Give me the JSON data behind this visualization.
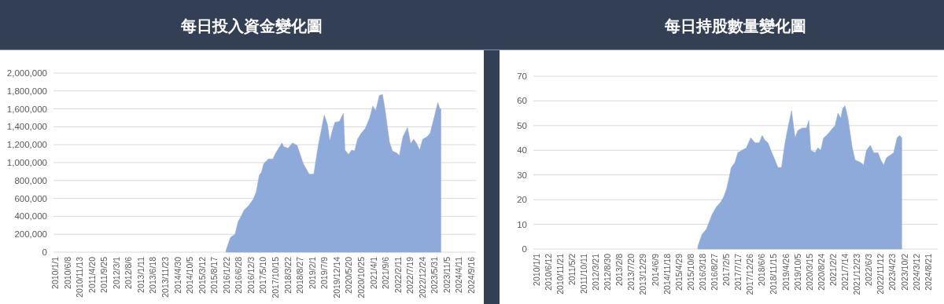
{
  "chart_data": [
    {
      "type": "area",
      "title": "每日投入資金變化圖",
      "grid": "y",
      "xlim": [
        "2009-12-12",
        "2024-11-16"
      ],
      "ylim": [
        0,
        2000000
      ],
      "yticks": [
        {
          "value": 0,
          "label": "0"
        },
        {
          "value": 200000,
          "label": "200,000"
        },
        {
          "value": 400000,
          "label": "400,000"
        },
        {
          "value": 600000,
          "label": "600,000"
        },
        {
          "value": 800000,
          "label": "800,000"
        },
        {
          "value": 1000000,
          "label": "1,000,000"
        },
        {
          "value": 1200000,
          "label": "1,200,000"
        },
        {
          "value": 1400000,
          "label": "1,400,000"
        },
        {
          "value": 1600000,
          "label": "1,600,000"
        },
        {
          "value": 1800000,
          "label": "1,800,000"
        },
        {
          "value": 2000000,
          "label": "2,000,000"
        }
      ],
      "xticks": [
        {
          "value": "2010-01-01",
          "label": "2010/1/1"
        },
        {
          "value": "2010-06-08",
          "label": "2010/6/8"
        },
        {
          "value": "2010-11-13",
          "label": "2010/11/13"
        },
        {
          "value": "2011-04-20",
          "label": "2011/4/20"
        },
        {
          "value": "2011-09-25",
          "label": "2011/9/25"
        },
        {
          "value": "2012-03-01",
          "label": "2012/3/1"
        },
        {
          "value": "2012-08-06",
          "label": "2012/8/6"
        },
        {
          "value": "2013-01-11",
          "label": "2013/1/11"
        },
        {
          "value": "2013-06-18",
          "label": "2013/6/18"
        },
        {
          "value": "2013-11-23",
          "label": "2013/11/23"
        },
        {
          "value": "2014-04-30",
          "label": "2014/4/30"
        },
        {
          "value": "2014-10-05",
          "label": "2014/10/5"
        },
        {
          "value": "2015-03-12",
          "label": "2015/3/12"
        },
        {
          "value": "2015-08-17",
          "label": "2015/8/17"
        },
        {
          "value": "2016-01-22",
          "label": "2016/1/22"
        },
        {
          "value": "2016-06-28",
          "label": "2016/6/28"
        },
        {
          "value": "2016-12-03",
          "label": "2016/12/3"
        },
        {
          "value": "2017-05-10",
          "label": "2017/5/10"
        },
        {
          "value": "2017-10-15",
          "label": "2017/10/15"
        },
        {
          "value": "2018-03-22",
          "label": "2018/3/22"
        },
        {
          "value": "2018-08-27",
          "label": "2018/8/27"
        },
        {
          "value": "2019-02-01",
          "label": "2019/2/1"
        },
        {
          "value": "2019-07-09",
          "label": "2019/7/9"
        },
        {
          "value": "2019-12-14",
          "label": "2019/12/14"
        },
        {
          "value": "2020-05-20",
          "label": "2020/5/20"
        },
        {
          "value": "2020-10-25",
          "label": "2020/10/25"
        },
        {
          "value": "2021-04-01",
          "label": "2021/4/1"
        },
        {
          "value": "2021-09-06",
          "label": "2021/9/6"
        },
        {
          "value": "2022-02-11",
          "label": "2022/2/11"
        },
        {
          "value": "2022-07-19",
          "label": "2022/7/19"
        },
        {
          "value": "2022-12-24",
          "label": "2022/12/24"
        },
        {
          "value": "2023-05-31",
          "label": "2023/5/31"
        },
        {
          "value": "2023-11-05",
          "label": "2023/11/5"
        },
        {
          "value": "2024-04-11",
          "label": "2024/4/11"
        },
        {
          "value": "2024-09-16",
          "label": "2024/9/16"
        }
      ],
      "x": [
        "2016-01-17",
        "2016-03-15",
        "2016-05-13",
        "2016-06-21",
        "2016-07-30",
        "2016-09-07",
        "2016-11-05",
        "2017-01-02",
        "2017-02-10",
        "2017-03-22",
        "2017-04-18",
        "2017-05-19",
        "2017-07-17",
        "2017-09-13",
        "2017-10-22",
        "2018-01-09",
        "2018-01-28",
        "2018-03-28",
        "2018-05-25",
        "2018-07-23",
        "2018-08-31",
        "2018-10-09",
        "2018-12-26",
        "2019-02-23",
        "2019-04-22",
        "2019-07-09",
        "2019-08-17",
        "2019-09-18",
        "2019-10-15",
        "2019-11-23",
        "2020-01-21",
        "2020-03-11",
        "2020-03-31",
        "2020-05-17",
        "2020-06-25",
        "2020-08-03",
        "2020-09-11",
        "2020-10-20",
        "2020-12-18",
        "2021-02-14",
        "2021-03-25",
        "2021-05-03",
        "2021-06-19",
        "2021-07-28",
        "2021-08-29",
        "2021-10-26",
        "2021-12-04",
        "2022-01-24",
        "2022-03-04",
        "2022-04-20",
        "2022-06-17",
        "2022-07-27",
        "2022-09-04",
        "2022-10-13",
        "2022-11-21",
        "2022-12-30",
        "2023-02-26",
        "2023-04-06",
        "2023-06-04",
        "2023-07-13",
        "2023-08-09",
        "2023-08-21"
      ],
      "series": [
        {
          "color": "#8eaadb",
          "values": [
            20000,
            165000,
            200000,
            340000,
            400000,
            470000,
            520000,
            590000,
            670000,
            860000,
            890000,
            990000,
            1040000,
            1040000,
            1110000,
            1220000,
            1180000,
            1160000,
            1220000,
            1190000,
            1090000,
            990000,
            870000,
            870000,
            1190000,
            1530000,
            1430000,
            1240000,
            1340000,
            1450000,
            1460000,
            1550000,
            1140000,
            1090000,
            1140000,
            1130000,
            1260000,
            1320000,
            1380000,
            1500000,
            1630000,
            1580000,
            1750000,
            1760000,
            1600000,
            1230000,
            1130000,
            1110000,
            1080000,
            1290000,
            1390000,
            1210000,
            1260000,
            1210000,
            1140000,
            1260000,
            1290000,
            1330000,
            1530000,
            1670000,
            1600000,
            1600000
          ]
        }
      ]
    },
    {
      "type": "area",
      "title": "每日持股數量變化圖",
      "grid": "y",
      "xlim": [
        "2009-11-23",
        "2024-12-31"
      ],
      "ylim": [
        0,
        70
      ],
      "yticks": [
        0,
        10,
        20,
        30,
        40,
        50,
        60,
        70
      ],
      "xticks": [
        {
          "value": "2010-01-01",
          "label": "2010/1/1"
        },
        {
          "value": "2010-06-12",
          "label": "2010/6/12"
        },
        {
          "value": "2010-11-21",
          "label": "2010/11/21"
        },
        {
          "value": "2011-05-02",
          "label": "2011/5/2"
        },
        {
          "value": "2011-10-11",
          "label": "2011/10/11"
        },
        {
          "value": "2012-03-21",
          "label": "2012/3/21"
        },
        {
          "value": "2012-08-30",
          "label": "2012/8/30"
        },
        {
          "value": "2013-02-08",
          "label": "2013/2/8"
        },
        {
          "value": "2013-07-20",
          "label": "2013/7/20"
        },
        {
          "value": "2013-12-29",
          "label": "2013/12/29"
        },
        {
          "value": "2014-06-09",
          "label": "2014/6/9"
        },
        {
          "value": "2014-11-18",
          "label": "2014/11/18"
        },
        {
          "value": "2015-04-29",
          "label": "2015/4/29"
        },
        {
          "value": "2015-10-08",
          "label": "2015/10/8"
        },
        {
          "value": "2016-03-18",
          "label": "2016/3/18"
        },
        {
          "value": "2016-08-27",
          "label": "2016/8/27"
        },
        {
          "value": "2017-02-05",
          "label": "2017/2/5"
        },
        {
          "value": "2017-07-17",
          "label": "2017/7/17"
        },
        {
          "value": "2017-12-26",
          "label": "2017/12/26"
        },
        {
          "value": "2018-06-06",
          "label": "2018/6/6"
        },
        {
          "value": "2018-11-15",
          "label": "2018/11/15"
        },
        {
          "value": "2019-04-26",
          "label": "2019/4/26"
        },
        {
          "value": "2019-10-05",
          "label": "2019/10/5"
        },
        {
          "value": "2020-03-15",
          "label": "2020/3/15"
        },
        {
          "value": "2020-08-24",
          "label": "2020/8/24"
        },
        {
          "value": "2021-02-02",
          "label": "2021/2/2"
        },
        {
          "value": "2021-07-14",
          "label": "2021/7/14"
        },
        {
          "value": "2021-12-23",
          "label": "2021/12/23"
        },
        {
          "value": "2022-06-03",
          "label": "2022/6/3"
        },
        {
          "value": "2022-11-12",
          "label": "2022/11/12"
        },
        {
          "value": "2023-04-23",
          "label": "2023/4/23"
        },
        {
          "value": "2023-10-02",
          "label": "2023/10/2"
        },
        {
          "value": "2024-03-12",
          "label": "2024/3/12"
        },
        {
          "value": "2024-08-21",
          "label": "2024/8/21"
        }
      ],
      "x": [
        "2016-01-15",
        "2016-03-13",
        "2016-05-11",
        "2016-06-19",
        "2016-07-28",
        "2016-09-24",
        "2016-11-22",
        "2016-12-31",
        "2017-02-08",
        "2017-03-19",
        "2017-04-15",
        "2017-06-05",
        "2017-07-14",
        "2017-09-10",
        "2017-11-08",
        "2018-01-06",
        "2018-03-05",
        "2018-05-03",
        "2018-06-11",
        "2018-07-20",
        "2018-08-28",
        "2018-10-06",
        "2018-12-03",
        "2019-01-11",
        "2019-03-03",
        "2019-04-19",
        "2019-05-28",
        "2019-07-17",
        "2019-09-02",
        "2019-10-11",
        "2019-12-09",
        "2020-02-05",
        "2020-03-08",
        "2020-04-04",
        "2020-06-01",
        "2020-07-10",
        "2020-08-18",
        "2020-09-27",
        "2020-11-05",
        "2021-01-02",
        "2021-03-02",
        "2021-04-10",
        "2021-05-19",
        "2021-06-15",
        "2021-07-16",
        "2021-08-24",
        "2021-10-22",
        "2021-11-30",
        "2022-02-16",
        "2022-03-26",
        "2022-05-05",
        "2022-06-25",
        "2022-08-10",
        "2022-10-08",
        "2022-11-16",
        "2022-12-25",
        "2023-02-02",
        "2023-03-25",
        "2023-05-11",
        "2023-06-26",
        "2023-07-28",
        "2023-08-28"
      ],
      "series": [
        {
          "color": "#8eaadb",
          "values": [
            1,
            6,
            8,
            11,
            14,
            17,
            19,
            21,
            24,
            29,
            33,
            35,
            39,
            40,
            41,
            45,
            43,
            43,
            46,
            44,
            43,
            40,
            36,
            33,
            33,
            43,
            49,
            56,
            45,
            48,
            49,
            49,
            52,
            40,
            39,
            41,
            40,
            45,
            46,
            48,
            50,
            55,
            53,
            57,
            58,
            53,
            41,
            36,
            35,
            34,
            40,
            42,
            39,
            39,
            36,
            34,
            37,
            38,
            39,
            45,
            46,
            45
          ]
        }
      ]
    }
  ]
}
